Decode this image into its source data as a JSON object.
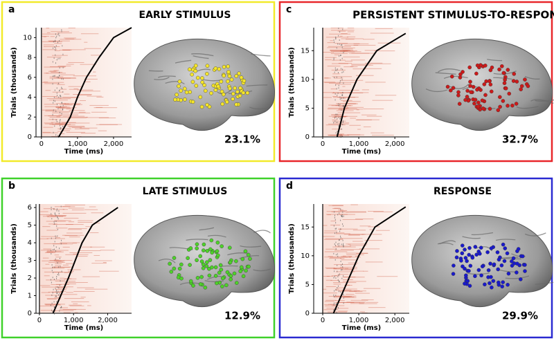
{
  "chart_data": [
    {
      "type": "line",
      "panel_label": "a",
      "title": "EARLY STIMULUS",
      "xlabel": "Time (ms)",
      "ylabel": "Trials (thousands)",
      "xlim": [
        -150,
        2500
      ],
      "xticks": [
        0,
        {
          "value": 1000,
          "label": "1,000"
        },
        {
          "value": 2000,
          "label": "2,000"
        }
      ],
      "ylim": [
        0,
        11
      ],
      "yticks": [
        0,
        2,
        4,
        6,
        8,
        10
      ],
      "series": [
        {
          "color": "#000000",
          "x": [
            480,
            800,
            1000,
            1250,
            1600,
            2000,
            2500
          ],
          "values": [
            0,
            2,
            4,
            6,
            8,
            10,
            11
          ]
        }
      ],
      "annotation": "23.1%",
      "frame_color": "#f2ea2a",
      "dot_color": "#f5e52a"
    },
    {
      "type": "line",
      "panel_label": "c",
      "title": "PERSISTENT STIMULUS-TO-RESPONSE",
      "xlabel": "Time (ms)",
      "ylabel": "Trials (thousands)",
      "xlim": [
        -250,
        2400
      ],
      "xticks": [
        0,
        {
          "value": 1000,
          "label": "1,000"
        },
        {
          "value": 2000,
          "label": "2,000"
        }
      ],
      "ylim": [
        0,
        19
      ],
      "yticks": [
        0,
        5,
        10,
        15
      ],
      "series": [
        {
          "color": "#000000",
          "x": [
            400,
            600,
            950,
            1500,
            2300
          ],
          "values": [
            0,
            5,
            10,
            15,
            18
          ]
        }
      ],
      "annotation": "32.7%",
      "frame_color": "#e8262a",
      "dot_color": "#cc1a1a"
    },
    {
      "type": "line",
      "panel_label": "b",
      "title": "LATE STIMULUS",
      "xlabel": "Time (ms)",
      "ylabel": "Trials (thousands)",
      "xlim": [
        -100,
        2700
      ],
      "xticks": [
        0,
        {
          "value": 1000,
          "label": "1,000"
        },
        {
          "value": 2000,
          "label": "2,000"
        }
      ],
      "ylim": [
        0,
        6.2
      ],
      "yticks": [
        0,
        1,
        2,
        3,
        4,
        5,
        6
      ],
      "series": [
        {
          "color": "#000000",
          "x": [
            400,
            850,
            1050,
            1250,
            1550,
            2300
          ],
          "values": [
            0,
            2,
            3,
            4,
            5,
            6
          ]
        }
      ],
      "annotation": "12.9%",
      "frame_color": "#3fd12a",
      "dot_color": "#4ed12a"
    },
    {
      "type": "line",
      "panel_label": "d",
      "title": "RESPONSE",
      "xlabel": "Time (ms)",
      "ylabel": "Trials (thousands)",
      "xlim": [
        -250,
        2400
      ],
      "xticks": [
        0,
        {
          "value": 1000,
          "label": "1,000"
        },
        {
          "value": 2000,
          "label": "2,000"
        }
      ],
      "ylim": [
        0,
        19
      ],
      "yticks": [
        0,
        5,
        10,
        15
      ],
      "series": [
        {
          "color": "#000000",
          "x": [
            300,
            650,
            1000,
            1450,
            2300
          ],
          "values": [
            0,
            5,
            10,
            15,
            18.5
          ]
        }
      ],
      "annotation": "29.9%",
      "frame_color": "#2a2ad1",
      "dot_color": "#1a1acc"
    }
  ]
}
